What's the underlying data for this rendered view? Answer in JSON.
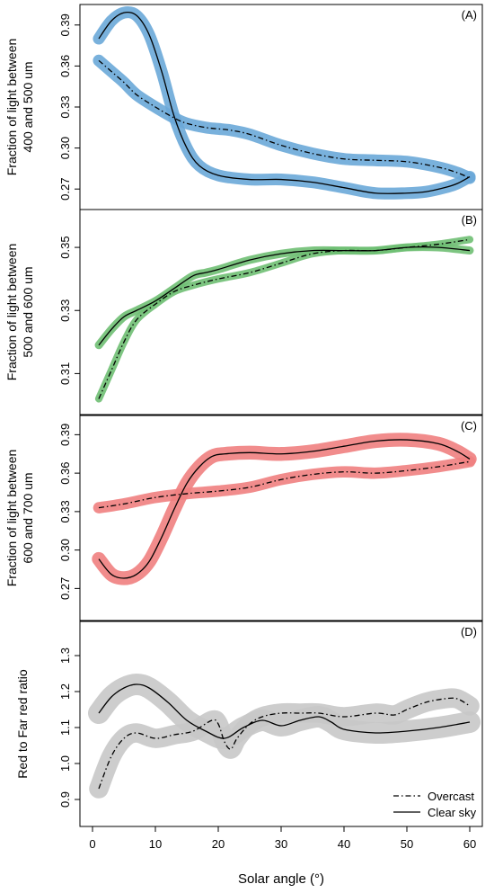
{
  "figure": {
    "xlabel": "Solar angle (°)",
    "xticks": [
      "0",
      "10",
      "20",
      "30",
      "40",
      "50",
      "60"
    ],
    "legend": {
      "items": [
        {
          "label": "Overcast",
          "style": "dashdot"
        },
        {
          "label": "Clear sky",
          "style": "solid"
        }
      ],
      "placement": "bottom-right of panel D"
    }
  },
  "chart_data": [
    {
      "type": "line",
      "panel_label": "(A)",
      "ylabel_line1": "Fraction of light between",
      "ylabel_line2": "400 and 500 um",
      "yticks": [
        "0.27",
        "0.30",
        "0.33",
        "0.36",
        "0.39"
      ],
      "ylim": [
        0.255,
        0.405
      ],
      "xlim": [
        -2,
        62
      ],
      "band_color": "#6aa8d8",
      "series": [
        {
          "name": "Overcast",
          "style": "dashdot",
          "x": [
            1,
            3,
            5,
            7,
            10,
            13,
            15,
            18,
            20,
            22,
            25,
            30,
            35,
            40,
            45,
            50,
            55,
            58,
            60
          ],
          "y": [
            0.364,
            0.356,
            0.348,
            0.339,
            0.33,
            0.322,
            0.318,
            0.315,
            0.314,
            0.313,
            0.31,
            0.302,
            0.296,
            0.292,
            0.291,
            0.29,
            0.286,
            0.282,
            0.278
          ],
          "band": 0.003
        },
        {
          "name": "Clear sky",
          "style": "solid",
          "x": [
            1,
            3,
            5,
            7,
            9,
            11,
            13,
            15,
            17,
            20,
            25,
            30,
            35,
            40,
            45,
            50,
            53,
            56,
            58,
            60
          ],
          "y": [
            0.38,
            0.393,
            0.399,
            0.397,
            0.383,
            0.356,
            0.323,
            0.3,
            0.287,
            0.28,
            0.277,
            0.277,
            0.275,
            0.271,
            0.267,
            0.267,
            0.268,
            0.271,
            0.274,
            0.279
          ],
          "band": 0.003
        }
      ]
    },
    {
      "type": "line",
      "panel_label": "(B)",
      "ylabel_line1": "Fraction of light between",
      "ylabel_line2": "500 and 600 um",
      "yticks": [
        "0.31",
        "0.33",
        "0.35"
      ],
      "ylim": [
        0.297,
        0.362
      ],
      "xlim": [
        -2,
        62
      ],
      "band_color": "#6fbf73",
      "series": [
        {
          "name": "Overcast",
          "style": "dashdot",
          "x": [
            1,
            3,
            5,
            7,
            10,
            13,
            16,
            20,
            25,
            30,
            35,
            40,
            45,
            50,
            55,
            60
          ],
          "y": [
            0.302,
            0.311,
            0.32,
            0.327,
            0.332,
            0.336,
            0.338,
            0.34,
            0.342,
            0.345,
            0.348,
            0.349,
            0.349,
            0.35,
            0.351,
            0.3525
          ],
          "band": 0.0006
        },
        {
          "name": "Clear sky",
          "style": "solid",
          "x": [
            1,
            3,
            5,
            7,
            10,
            13,
            16,
            18,
            20,
            25,
            30,
            35,
            40,
            45,
            50,
            55,
            60
          ],
          "y": [
            0.319,
            0.324,
            0.328,
            0.33,
            0.333,
            0.337,
            0.341,
            0.342,
            0.343,
            0.346,
            0.348,
            0.349,
            0.349,
            0.349,
            0.35,
            0.35,
            0.349
          ],
          "band": 0.0007
        }
      ]
    },
    {
      "type": "line",
      "panel_label": "(C)",
      "ylabel_line1": "Fraction of light between",
      "ylabel_line2": "600 and 700 um",
      "yticks": [
        "0.27",
        "0.30",
        "0.33",
        "0.36",
        "0.39"
      ],
      "ylim": [
        0.245,
        0.405
      ],
      "xlim": [
        -2,
        62
      ],
      "band_color": "#f08080",
      "series": [
        {
          "name": "Overcast",
          "style": "dashdot",
          "x": [
            1,
            5,
            10,
            15,
            20,
            25,
            30,
            35,
            40,
            45,
            50,
            55,
            60
          ],
          "y": [
            0.333,
            0.336,
            0.341,
            0.344,
            0.346,
            0.349,
            0.355,
            0.359,
            0.361,
            0.36,
            0.362,
            0.365,
            0.369
          ],
          "band": 0.003
        },
        {
          "name": "Clear sky",
          "style": "solid",
          "x": [
            1,
            3,
            5,
            7,
            9,
            11,
            13,
            15,
            17,
            19,
            21,
            25,
            30,
            35,
            40,
            45,
            50,
            55,
            58,
            60
          ],
          "y": [
            0.293,
            0.281,
            0.278,
            0.281,
            0.291,
            0.31,
            0.332,
            0.352,
            0.365,
            0.373,
            0.375,
            0.376,
            0.375,
            0.377,
            0.381,
            0.385,
            0.386,
            0.383,
            0.377,
            0.371
          ],
          "band": 0.004
        }
      ]
    },
    {
      "type": "line",
      "panel_label": "(D)",
      "ylabel_line1": "Red to Far red ratio",
      "ylabel_line2": "",
      "yticks": [
        "0.9",
        "1.0",
        "1.1",
        "1.2",
        "1.3"
      ],
      "ylim": [
        0.825,
        1.395
      ],
      "xlim": [
        -2,
        62
      ],
      "band_color": "#c8c8c8",
      "series": [
        {
          "name": "Overcast",
          "style": "dashdot",
          "x": [
            1,
            3,
            5,
            7,
            10,
            13,
            16,
            19,
            20,
            21,
            22,
            23,
            25,
            27,
            30,
            33,
            36,
            40,
            45,
            48,
            50,
            53,
            56,
            58,
            60
          ],
          "y": [
            0.93,
            1.02,
            1.07,
            1.085,
            1.07,
            1.08,
            1.09,
            1.12,
            1.11,
            1.06,
            1.04,
            1.07,
            1.11,
            1.13,
            1.14,
            1.14,
            1.14,
            1.13,
            1.14,
            1.135,
            1.15,
            1.17,
            1.18,
            1.18,
            1.16
          ],
          "band": 0.022
        },
        {
          "name": "Clear sky",
          "style": "solid",
          "x": [
            1,
            3,
            5,
            7,
            9,
            12,
            15,
            18,
            21,
            24,
            27,
            30,
            33,
            36,
            38,
            40,
            45,
            50,
            55,
            60
          ],
          "y": [
            1.14,
            1.185,
            1.21,
            1.22,
            1.21,
            1.17,
            1.12,
            1.09,
            1.07,
            1.1,
            1.12,
            1.105,
            1.12,
            1.13,
            1.115,
            1.095,
            1.085,
            1.09,
            1.1,
            1.115
          ],
          "band": 0.025
        }
      ]
    }
  ]
}
